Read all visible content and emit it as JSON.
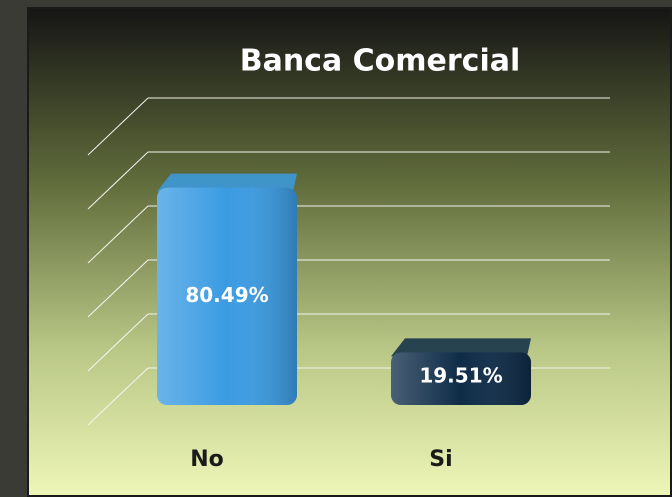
{
  "chart_data": {
    "type": "bar3d",
    "title": "Banca Comercial",
    "categories": [
      "No",
      "Si"
    ],
    "series": [
      {
        "values": [
          80.49,
          19.51
        ],
        "value_labels": [
          "80.49%",
          "19.51%"
        ],
        "colors": [
          "#3a9be2",
          "#0e2b47"
        ]
      }
    ],
    "ylim": [
      0,
      100
    ],
    "yticks": [
      0,
      20,
      40,
      60,
      80,
      100
    ],
    "grid": true
  }
}
